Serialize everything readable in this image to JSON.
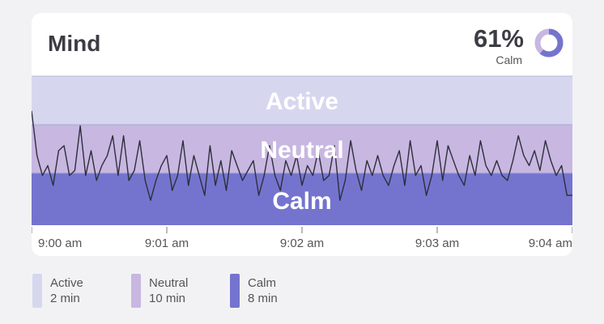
{
  "header": {
    "title": "Mind",
    "percent": "61%",
    "percent_label": "Calm"
  },
  "colors": {
    "active": "#d6d7ef",
    "neutral": "#c7b7e1",
    "calm": "#7474cf",
    "line": "#2e2e3a"
  },
  "chart_data": {
    "type": "line",
    "bands": [
      "Active",
      "Neutral",
      "Calm"
    ],
    "x_ticks": [
      "9:00 am",
      "9:01 am",
      "9:02 am",
      "9:03 am",
      "9:04 am"
    ],
    "xlim": [
      0,
      4
    ],
    "ylim": [
      0,
      3
    ],
    "x": [
      0,
      0.04,
      0.08,
      0.12,
      0.16,
      0.2,
      0.24,
      0.28,
      0.32,
      0.36,
      0.4,
      0.44,
      0.48,
      0.52,
      0.56,
      0.6,
      0.64,
      0.68,
      0.72,
      0.76,
      0.8,
      0.84,
      0.88,
      0.92,
      0.96,
      1.0,
      1.04,
      1.08,
      1.12,
      1.16,
      1.2,
      1.24,
      1.28,
      1.32,
      1.36,
      1.4,
      1.44,
      1.48,
      1.52,
      1.56,
      1.6,
      1.64,
      1.68,
      1.72,
      1.76,
      1.8,
      1.84,
      1.88,
      1.92,
      1.96,
      2.0,
      2.04,
      2.08,
      2.12,
      2.16,
      2.2,
      2.24,
      2.28,
      2.32,
      2.36,
      2.4,
      2.44,
      2.48,
      2.52,
      2.56,
      2.6,
      2.64,
      2.68,
      2.72,
      2.76,
      2.8,
      2.84,
      2.88,
      2.92,
      2.96,
      3.0,
      3.04,
      3.08,
      3.12,
      3.16,
      3.2,
      3.24,
      3.28,
      3.32,
      3.36,
      3.4,
      3.44,
      3.48,
      3.52,
      3.56,
      3.6,
      3.64,
      3.68,
      3.72,
      3.76,
      3.8,
      3.84,
      3.88,
      3.92,
      3.96,
      4.0
    ],
    "y": [
      2.3,
      1.4,
      1.0,
      1.2,
      0.8,
      1.5,
      1.6,
      1.0,
      1.1,
      2.0,
      1.0,
      1.5,
      0.9,
      1.2,
      1.4,
      1.8,
      1.0,
      1.8,
      0.9,
      1.1,
      1.7,
      0.9,
      0.5,
      0.9,
      1.2,
      1.4,
      0.7,
      1.0,
      1.7,
      0.8,
      1.4,
      1.0,
      0.6,
      1.6,
      0.8,
      1.3,
      0.7,
      1.5,
      1.2,
      0.9,
      1.1,
      1.3,
      0.6,
      1.0,
      1.6,
      1.0,
      0.7,
      1.3,
      1.0,
      1.4,
      0.8,
      1.2,
      1.0,
      1.5,
      0.9,
      1.0,
      1.6,
      0.5,
      0.9,
      1.7,
      1.1,
      0.7,
      1.3,
      1.0,
      1.4,
      1.0,
      0.8,
      1.2,
      1.5,
      0.8,
      1.7,
      1.0,
      1.2,
      0.6,
      1.0,
      1.7,
      0.9,
      1.6,
      1.3,
      1.0,
      0.8,
      1.4,
      1.0,
      1.7,
      1.2,
      1.0,
      1.3,
      1.0,
      0.9,
      1.3,
      1.8,
      1.4,
      1.2,
      1.5,
      1.1,
      1.7,
      1.3,
      1.0,
      1.2,
      0.6,
      0.6
    ]
  },
  "legend": [
    {
      "name": "Active",
      "value": "2 min",
      "color": "#d6d7ef"
    },
    {
      "name": "Neutral",
      "value": "10 min",
      "color": "#c7b7e1"
    },
    {
      "name": "Calm",
      "value": "8 min",
      "color": "#7474cf"
    }
  ]
}
